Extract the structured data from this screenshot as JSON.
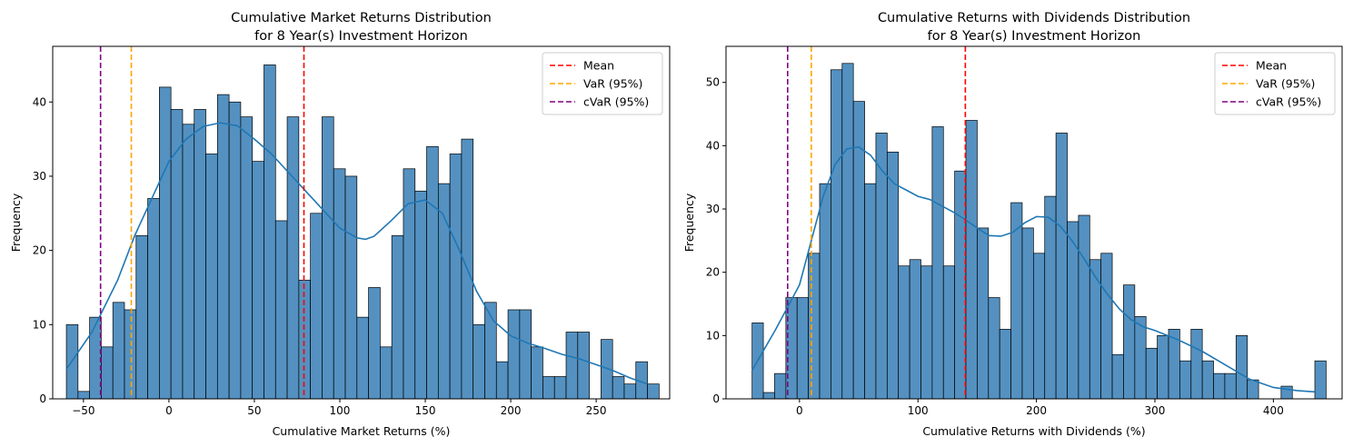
{
  "chart_data": [
    {
      "type": "bar",
      "title_line1": "Cumulative Market Returns Distribution",
      "title_line2": "for 8 Year(s) Investment Horizon",
      "xlabel": "Cumulative Market Returns (%)",
      "ylabel": "Frequency",
      "xlim": [
        -68,
        293
      ],
      "ylim": [
        0,
        47.5
      ],
      "xticks": [
        -50,
        0,
        50,
        100,
        150,
        200,
        250
      ],
      "yticks": [
        0,
        10,
        20,
        30,
        40
      ],
      "bin_start": -60,
      "bin_width": 6.8,
      "counts": [
        10,
        1,
        11,
        7,
        13,
        12,
        22,
        27,
        42,
        39,
        37,
        39,
        33,
        41,
        40,
        38,
        32,
        45,
        24,
        38,
        16,
        25,
        38,
        31,
        30,
        11,
        15,
        7,
        22,
        31,
        28,
        34,
        29,
        33,
        35,
        10,
        13,
        5,
        12,
        12,
        7,
        3,
        3,
        9,
        9,
        0,
        8,
        3,
        2,
        5,
        2
      ],
      "kde_x": [
        -60,
        -45,
        -30,
        -20,
        -10,
        0,
        10,
        20,
        30,
        40,
        50,
        60,
        70,
        80,
        90,
        100,
        110,
        115,
        120,
        130,
        140,
        150,
        160,
        170,
        180,
        190,
        200,
        210,
        220,
        230,
        240,
        250,
        260,
        270,
        280
      ],
      "kde_y": [
        4,
        9,
        16,
        22,
        27,
        32,
        35,
        36.7,
        37.2,
        36.8,
        35,
        33,
        30.5,
        28,
        25.5,
        23,
        21.7,
        21.5,
        21.9,
        24,
        26.3,
        26.8,
        25,
        20,
        14.5,
        10.5,
        8.5,
        7.5,
        6.8,
        6,
        5.4,
        4.6,
        3.8,
        2.8,
        2
      ],
      "lines": [
        {
          "name": "Mean",
          "x": 79,
          "color": "#ff0000"
        },
        {
          "name": "VaR (95%)",
          "x": -22,
          "color": "#ffa500"
        },
        {
          "name": "cVaR (95%)",
          "x": -40,
          "color": "#800080"
        }
      ],
      "bar_color": "#4b8bbe",
      "kde_color": "#1f77b4",
      "legend_position": "top-right"
    },
    {
      "type": "bar",
      "title_line1": "Cumulative Returns with Dividends Distribution",
      "title_line2": "for 8 Year(s) Investment Horizon",
      "xlabel": "Cumulative Returns with Dividends (%)",
      "ylabel": "Frequency",
      "xlim": [
        -62,
        458
      ],
      "ylim": [
        0,
        55.7
      ],
      "xticks": [
        0,
        100,
        200,
        300,
        400
      ],
      "yticks": [
        0,
        10,
        20,
        30,
        40,
        50
      ],
      "bin_start": -40,
      "bin_width": 9.5,
      "counts": [
        12,
        1,
        4,
        16,
        16,
        23,
        34,
        52,
        53,
        47,
        34,
        42,
        39,
        21,
        22,
        21,
        43,
        21,
        36,
        44,
        27,
        16,
        11,
        31,
        27,
        23,
        32,
        42,
        28,
        29,
        22,
        23,
        7,
        18,
        13,
        8,
        10,
        11,
        6,
        11,
        6,
        4,
        4,
        10,
        3,
        0,
        0,
        2,
        0,
        0,
        6
      ],
      "kde_x": [
        -40,
        -20,
        0,
        10,
        20,
        30,
        40,
        50,
        60,
        70,
        80,
        90,
        100,
        110,
        120,
        130,
        140,
        150,
        160,
        170,
        180,
        190,
        200,
        210,
        220,
        230,
        240,
        250,
        260,
        270,
        280,
        290,
        300,
        320,
        340,
        360,
        380,
        400,
        420,
        435
      ],
      "kde_y": [
        4.5,
        11,
        18,
        25,
        32,
        37,
        39.5,
        39.8,
        38.5,
        36,
        34,
        33,
        32,
        31.5,
        30.5,
        29.5,
        28.3,
        27,
        25.8,
        25.7,
        26.3,
        27.8,
        28.8,
        28.7,
        27.3,
        25,
        22.2,
        19.2,
        16.5,
        14.2,
        12.5,
        11.4,
        10.8,
        9.3,
        7.5,
        5.3,
        3.1,
        1.8,
        1.3,
        1.1
      ],
      "lines": [
        {
          "name": "Mean",
          "x": 140,
          "color": "#ff0000"
        },
        {
          "name": "VaR (95%)",
          "x": 10,
          "color": "#ffa500"
        },
        {
          "name": "cVaR (95%)",
          "x": -10,
          "color": "#800080"
        }
      ],
      "bar_color": "#4b8bbe",
      "kde_color": "#1f77b4",
      "legend_position": "top-right"
    }
  ]
}
